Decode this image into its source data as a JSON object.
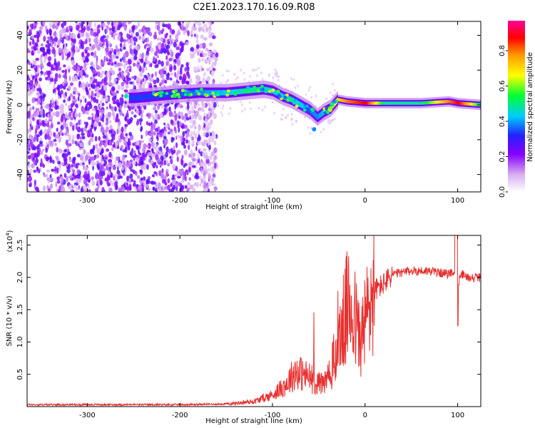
{
  "title": "C2E1.2023.170.16.09.R08",
  "colors": {
    "snr_line": "#e83030",
    "frame": "#000000"
  },
  "chart_data": [
    {
      "type": "heatmap",
      "xlabel": "Height of straight line (km)",
      "ylabel": "Frequency (Hz)",
      "xlim": [
        -365,
        125
      ],
      "ylim": [
        -50,
        48
      ],
      "xticks": [
        -300,
        -200,
        -100,
        0,
        100
      ],
      "yticks": [
        -40,
        -20,
        0,
        20,
        40
      ],
      "colorbar": {
        "label": "Normalized spectral amplitude",
        "range": [
          0.0,
          0.97
        ],
        "ticks": [
          0.0,
          0.2,
          0.4,
          0.6,
          0.8
        ],
        "tick_labels": [
          "0.0",
          "0.2",
          "0.4",
          "0.6",
          "0.8"
        ],
        "colors": [
          "#ffffff",
          "#d8b0f0",
          "#8800ff",
          "#2222ff",
          "#00ccff",
          "#00ff33",
          "#ffff00",
          "#ff9900",
          "#ff0000",
          "#ff0099"
        ]
      },
      "ridge": {
        "height_km": [
          -250,
          -210,
          -180,
          -150,
          -130,
          -110,
          -100,
          -90,
          -80,
          -70,
          -60,
          -52,
          -45,
          -38,
          -30,
          -20,
          0,
          20,
          60,
          90,
          100,
          125
        ],
        "frequency_hz": [
          4,
          6,
          7,
          7,
          8,
          9,
          8,
          5,
          3,
          0,
          -3,
          -7,
          -4,
          -2,
          3,
          2,
          1,
          1,
          1,
          2,
          1,
          0
        ],
        "amplitude": [
          0.35,
          0.35,
          0.4,
          0.45,
          0.5,
          0.5,
          0.45,
          0.45,
          0.5,
          0.45,
          0.4,
          0.4,
          0.45,
          0.6,
          0.7,
          0.8,
          0.9,
          0.5,
          0.5,
          0.8,
          0.9,
          0.5
        ]
      },
      "noise_region_km": [
        -365,
        -160
      ]
    },
    {
      "type": "line",
      "xlabel": "Height of straight line (km)",
      "ylabel": "SNR (10 * v/v)",
      "y_multiplier": "(x10",
      "y_multiplier_exp": "4",
      "y_multiplier_close": ")",
      "xlim": [
        -365,
        125
      ],
      "ylim": [
        0,
        26500
      ],
      "xticks": [
        -300,
        -200,
        -100,
        0,
        100
      ],
      "yticks": [
        5000,
        10000,
        15000,
        20000,
        25000
      ],
      "ytick_labels": [
        "0.5",
        "1.0",
        "1.5",
        "2.0",
        "2.5"
      ],
      "series": [
        {
          "name": "",
          "x": [
            -365,
            -300,
            -200,
            -150,
            -120,
            -100,
            -85,
            -75,
            -60,
            -50,
            -40,
            -30,
            -25,
            -20,
            -15,
            -10,
            -5,
            0,
            5,
            10,
            20,
            30,
            50,
            70,
            90,
            95,
            100,
            105,
            110,
            125
          ],
          "y": [
            300,
            300,
            300,
            400,
            800,
            1800,
            3500,
            5500,
            4500,
            3500,
            4000,
            9000,
            12000,
            15000,
            16000,
            13000,
            10000,
            13000,
            16000,
            18000,
            19000,
            20500,
            21000,
            21000,
            20500,
            21000,
            19000,
            20500,
            20000,
            20000
          ]
        }
      ]
    }
  ]
}
